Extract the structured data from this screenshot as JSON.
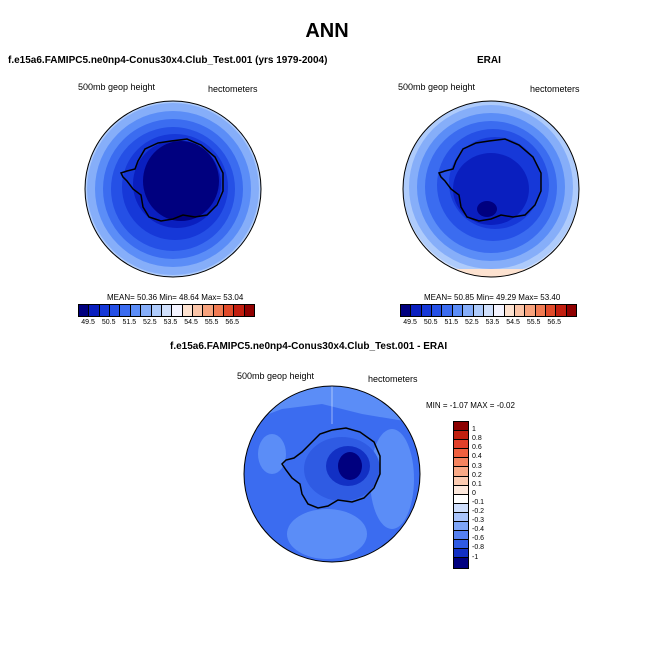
{
  "title": "ANN",
  "panels": {
    "left": {
      "title": "f.e15a6.FAMIPC5.ne0np4-Conus30x4.Club_Test.001 (yrs 1979-2004)",
      "field": "500mb geop height",
      "units": "hectometers",
      "stats": "MEAN=  50.36  Min=  48.64  Max=  53.04"
    },
    "right": {
      "title": "ERAI",
      "field": "500mb geop height",
      "units": "hectometers",
      "stats": "MEAN=  50.85  Min=  49.29  Max=  53.40"
    },
    "diff": {
      "title": "f.e15a6.FAMIPC5.ne0np4-Conus30x4.Club_Test.001 - ERAI",
      "field": "500mb geop height",
      "units": "hectometers",
      "stats": "MIN =  -1.07 MAX =  -0.02"
    }
  },
  "colorbar_abs": {
    "labels": [
      "49.5",
      "50.5",
      "51.5",
      "52.5",
      "53.5",
      "54.5",
      "55.5",
      "56.5"
    ],
    "colors": [
      "#00007f",
      "#0a1fbf",
      "#1638d8",
      "#2550e6",
      "#3b6cf0",
      "#5b8df7",
      "#86aef9",
      "#aecbfb",
      "#d0e0fc",
      "#f4f4ff",
      "#fde2d0",
      "#fbc5a8",
      "#f7a27c",
      "#f07a52",
      "#e04a2a",
      "#c21e0f",
      "#900000"
    ]
  },
  "colorbar_diff": {
    "labels": [
      "1",
      "0.8",
      "0.6",
      "0.4",
      "0.3",
      "0.2",
      "0.1",
      "0",
      "-0.1",
      "-0.2",
      "-0.3",
      "-0.4",
      "-0.6",
      "-0.8",
      "-1"
    ],
    "colors": [
      "#8b0000",
      "#c0200f",
      "#e0402a",
      "#f0603f",
      "#f5845f",
      "#f9a986",
      "#fccbb1",
      "#fde8dc",
      "#ffffff",
      "#cfdffd",
      "#a9c4fb",
      "#7ea5f7",
      "#5580f0",
      "#2f5be3",
      "#1230c4",
      "#00007f"
    ]
  },
  "icons": {
    "map": "antarctica-polar-map"
  }
}
